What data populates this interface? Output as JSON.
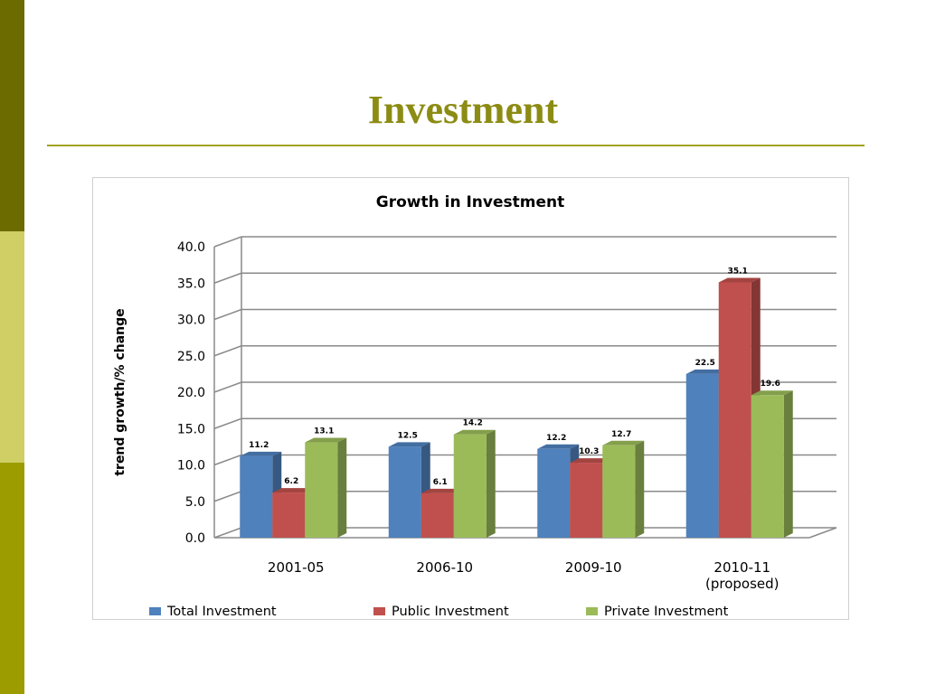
{
  "slide": {
    "title": "Investment"
  },
  "colors": {
    "sidebar_dark": "#6b6b00",
    "sidebar_light": "#cfcf66",
    "sidebar_mid": "#9c9c00",
    "title_color": "#8c8c14"
  },
  "chart_data": {
    "type": "bar",
    "title": "Growth in Investment",
    "xlabel": "",
    "ylabel": "trend growth/% change",
    "ylim": [
      0,
      40
    ],
    "yticks": [
      "0.0",
      "5.0",
      "10.0",
      "15.0",
      "20.0",
      "25.0",
      "30.0",
      "35.0",
      "40.0"
    ],
    "categories": [
      [
        "2001-05"
      ],
      [
        "2006-10"
      ],
      [
        "2009-10"
      ],
      [
        "2010-11",
        "(proposed)"
      ]
    ],
    "series": [
      {
        "name": "Total Investment",
        "color": "#4f81bd",
        "values": [
          11.2,
          12.5,
          12.2,
          22.5
        ],
        "labels": [
          "11.2",
          "12.5",
          "12.2",
          "22.5"
        ]
      },
      {
        "name": "Public Investment",
        "color": "#c0504d",
        "values": [
          6.2,
          6.1,
          10.3,
          35.1
        ],
        "labels": [
          "6.2",
          "6.1",
          "10.3",
          "35.1"
        ]
      },
      {
        "name": "Private Investment",
        "color": "#9bbb59",
        "values": [
          13.1,
          14.2,
          12.7,
          19.6
        ],
        "labels": [
          "13.1",
          "14.2",
          "12.7",
          "19.6"
        ]
      }
    ],
    "grid": true,
    "legend": "bottom",
    "three_d": true
  }
}
